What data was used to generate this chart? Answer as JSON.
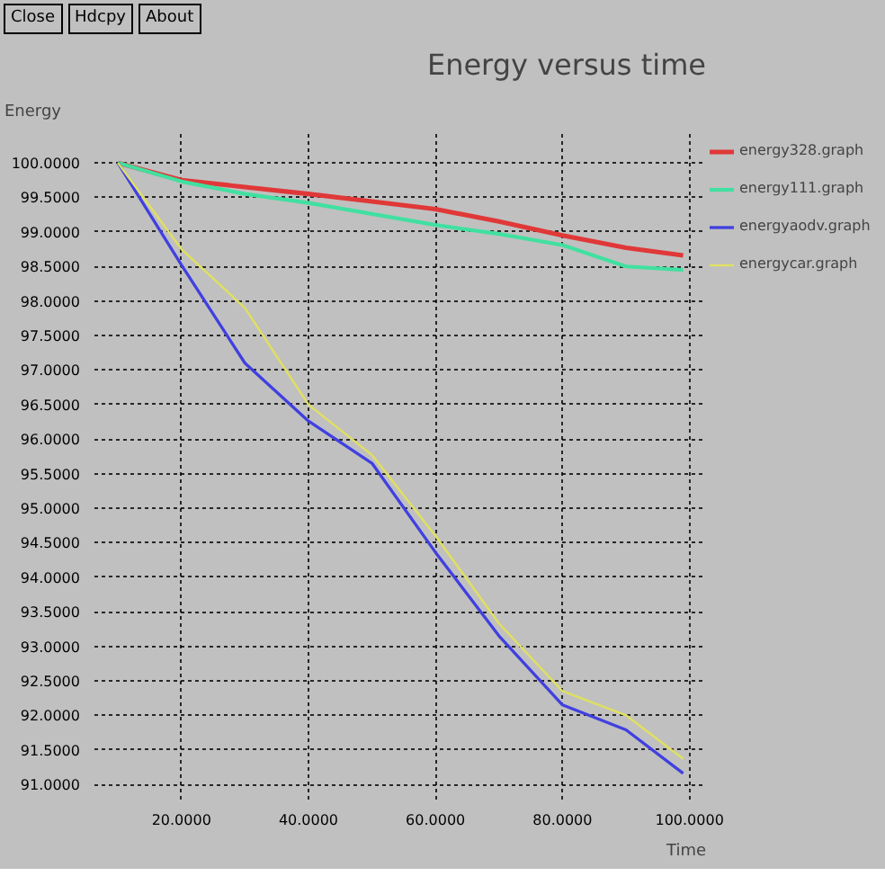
{
  "chart_data": {
    "type": "line",
    "title": "Energy versus time",
    "xlabel": "Time",
    "ylabel": "Energy",
    "annotations": [
      "Close",
      "Hdcpy",
      "About"
    ],
    "xlim": [
      6.3,
      102.6
    ],
    "ylim": [
      90.78,
      100.47
    ],
    "xticks": [
      {
        "value": 20,
        "label": "20.0000"
      },
      {
        "value": 40,
        "label": "40.0000"
      },
      {
        "value": 60,
        "label": "60.0000"
      },
      {
        "value": 80,
        "label": "80.0000"
      },
      {
        "value": 100,
        "label": "100.0000"
      }
    ],
    "yticks": [
      {
        "value": 91,
        "label": "91.0000"
      },
      {
        "value": 91.5,
        "label": "91.5000"
      },
      {
        "value": 92,
        "label": "92.0000"
      },
      {
        "value": 92.5,
        "label": "92.5000"
      },
      {
        "value": 93,
        "label": "93.0000"
      },
      {
        "value": 93.5,
        "label": "93.5000"
      },
      {
        "value": 94,
        "label": "94.0000"
      },
      {
        "value": 94.5,
        "label": "94.5000"
      },
      {
        "value": 95,
        "label": "95.0000"
      },
      {
        "value": 95.5,
        "label": "95.5000"
      },
      {
        "value": 96,
        "label": "96.0000"
      },
      {
        "value": 96.5,
        "label": "96.5000"
      },
      {
        "value": 97,
        "label": "97.0000"
      },
      {
        "value": 97.5,
        "label": "97.5000"
      },
      {
        "value": 98,
        "label": "98.0000"
      },
      {
        "value": 98.5,
        "label": "98.5000"
      },
      {
        "value": 99,
        "label": "99.0000"
      },
      {
        "value": 99.5,
        "label": "99.5000"
      },
      {
        "value": 100,
        "label": "100.0000"
      }
    ],
    "x": [
      10,
      20,
      30,
      40,
      50,
      60,
      70,
      80,
      90,
      99
    ],
    "grid": true,
    "legend": "right",
    "marker": "none",
    "line_style": "solid",
    "series": [
      {
        "name": "energy328.graph",
        "color": "#e03838",
        "values": [
          100,
          99.75,
          99.65,
          99.55,
          99.44,
          99.33,
          99.15,
          98.95,
          98.77,
          98.66
        ]
      },
      {
        "name": "energy111.graph",
        "color": "#40e0a0",
        "values": [
          100,
          99.73,
          99.55,
          99.42,
          99.26,
          99.1,
          98.97,
          98.81,
          98.5,
          98.45
        ]
      },
      {
        "name": "energyaodv.graph",
        "color": "#4040e0",
        "values": [
          100,
          98.52,
          97.1,
          96.26,
          95.65,
          94.36,
          93.15,
          92.15,
          91.79,
          91.16
        ]
      },
      {
        "name": "energycar.graph",
        "color": "#e0e060",
        "values": [
          100,
          98.75,
          97.9,
          96.5,
          95.77,
          94.6,
          93.33,
          92.35,
          92.0,
          91.37
        ]
      }
    ]
  }
}
